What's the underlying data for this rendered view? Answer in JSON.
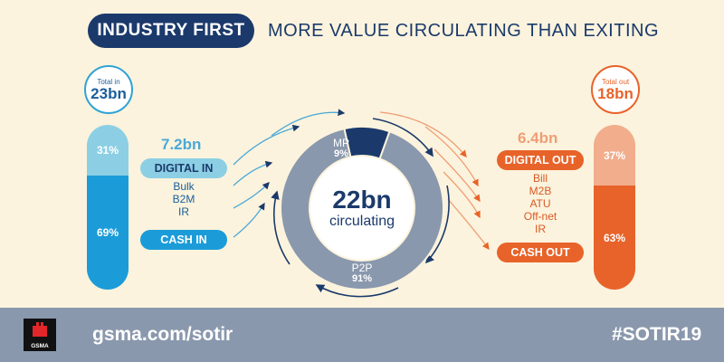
{
  "header": {
    "title": "INDUSTRY FIRST",
    "subtitle": "MORE VALUE CIRCULATING THAN EXITING"
  },
  "inflow": {
    "total_label": "Total in",
    "total_value": "23bn",
    "digital_amount": "7.2bn",
    "digital_label": "DIGITAL IN",
    "digital_items": [
      "Bulk",
      "B2M",
      "IR"
    ],
    "cash_label": "CASH IN",
    "bar": [
      {
        "label": "31%",
        "share": 31,
        "color": "#8ccfe4"
      },
      {
        "label": "69%",
        "share": 69,
        "color": "#1b9cd8"
      }
    ]
  },
  "outflow": {
    "total_label": "Total out",
    "total_value": "18bn",
    "digital_amount": "6.4bn",
    "digital_label": "DIGITAL OUT",
    "digital_items": [
      "Bill",
      "M2B",
      "ATU",
      "Off-net",
      "IR"
    ],
    "cash_label": "CASH OUT",
    "bar": [
      {
        "label": "37%",
        "share": 37,
        "color": "#f2ad8c"
      },
      {
        "label": "63%",
        "share": 63,
        "color": "#e8632a"
      }
    ]
  },
  "chart_data": {
    "type": "pie",
    "center_value": "22bn",
    "center_label": "circulating",
    "slices": [
      {
        "name": "MP",
        "label": "9%",
        "value": 9,
        "color": "#1b3a6b"
      },
      {
        "name": "P2P",
        "label": "91%",
        "value": 91,
        "color": "#8a98ad"
      }
    ]
  },
  "footer": {
    "logo_text": "GSMA",
    "url": "gsma.com/sotir",
    "hashtag": "#SOTIR19"
  },
  "colors": {
    "navy": "#1b3a6b",
    "blue": "#1b9cd8",
    "light_blue": "#8ccfe4",
    "orange": "#e8632a",
    "light_orange": "#f2ad8c",
    "slate": "#8a98ad",
    "background": "#fbf3dd"
  }
}
